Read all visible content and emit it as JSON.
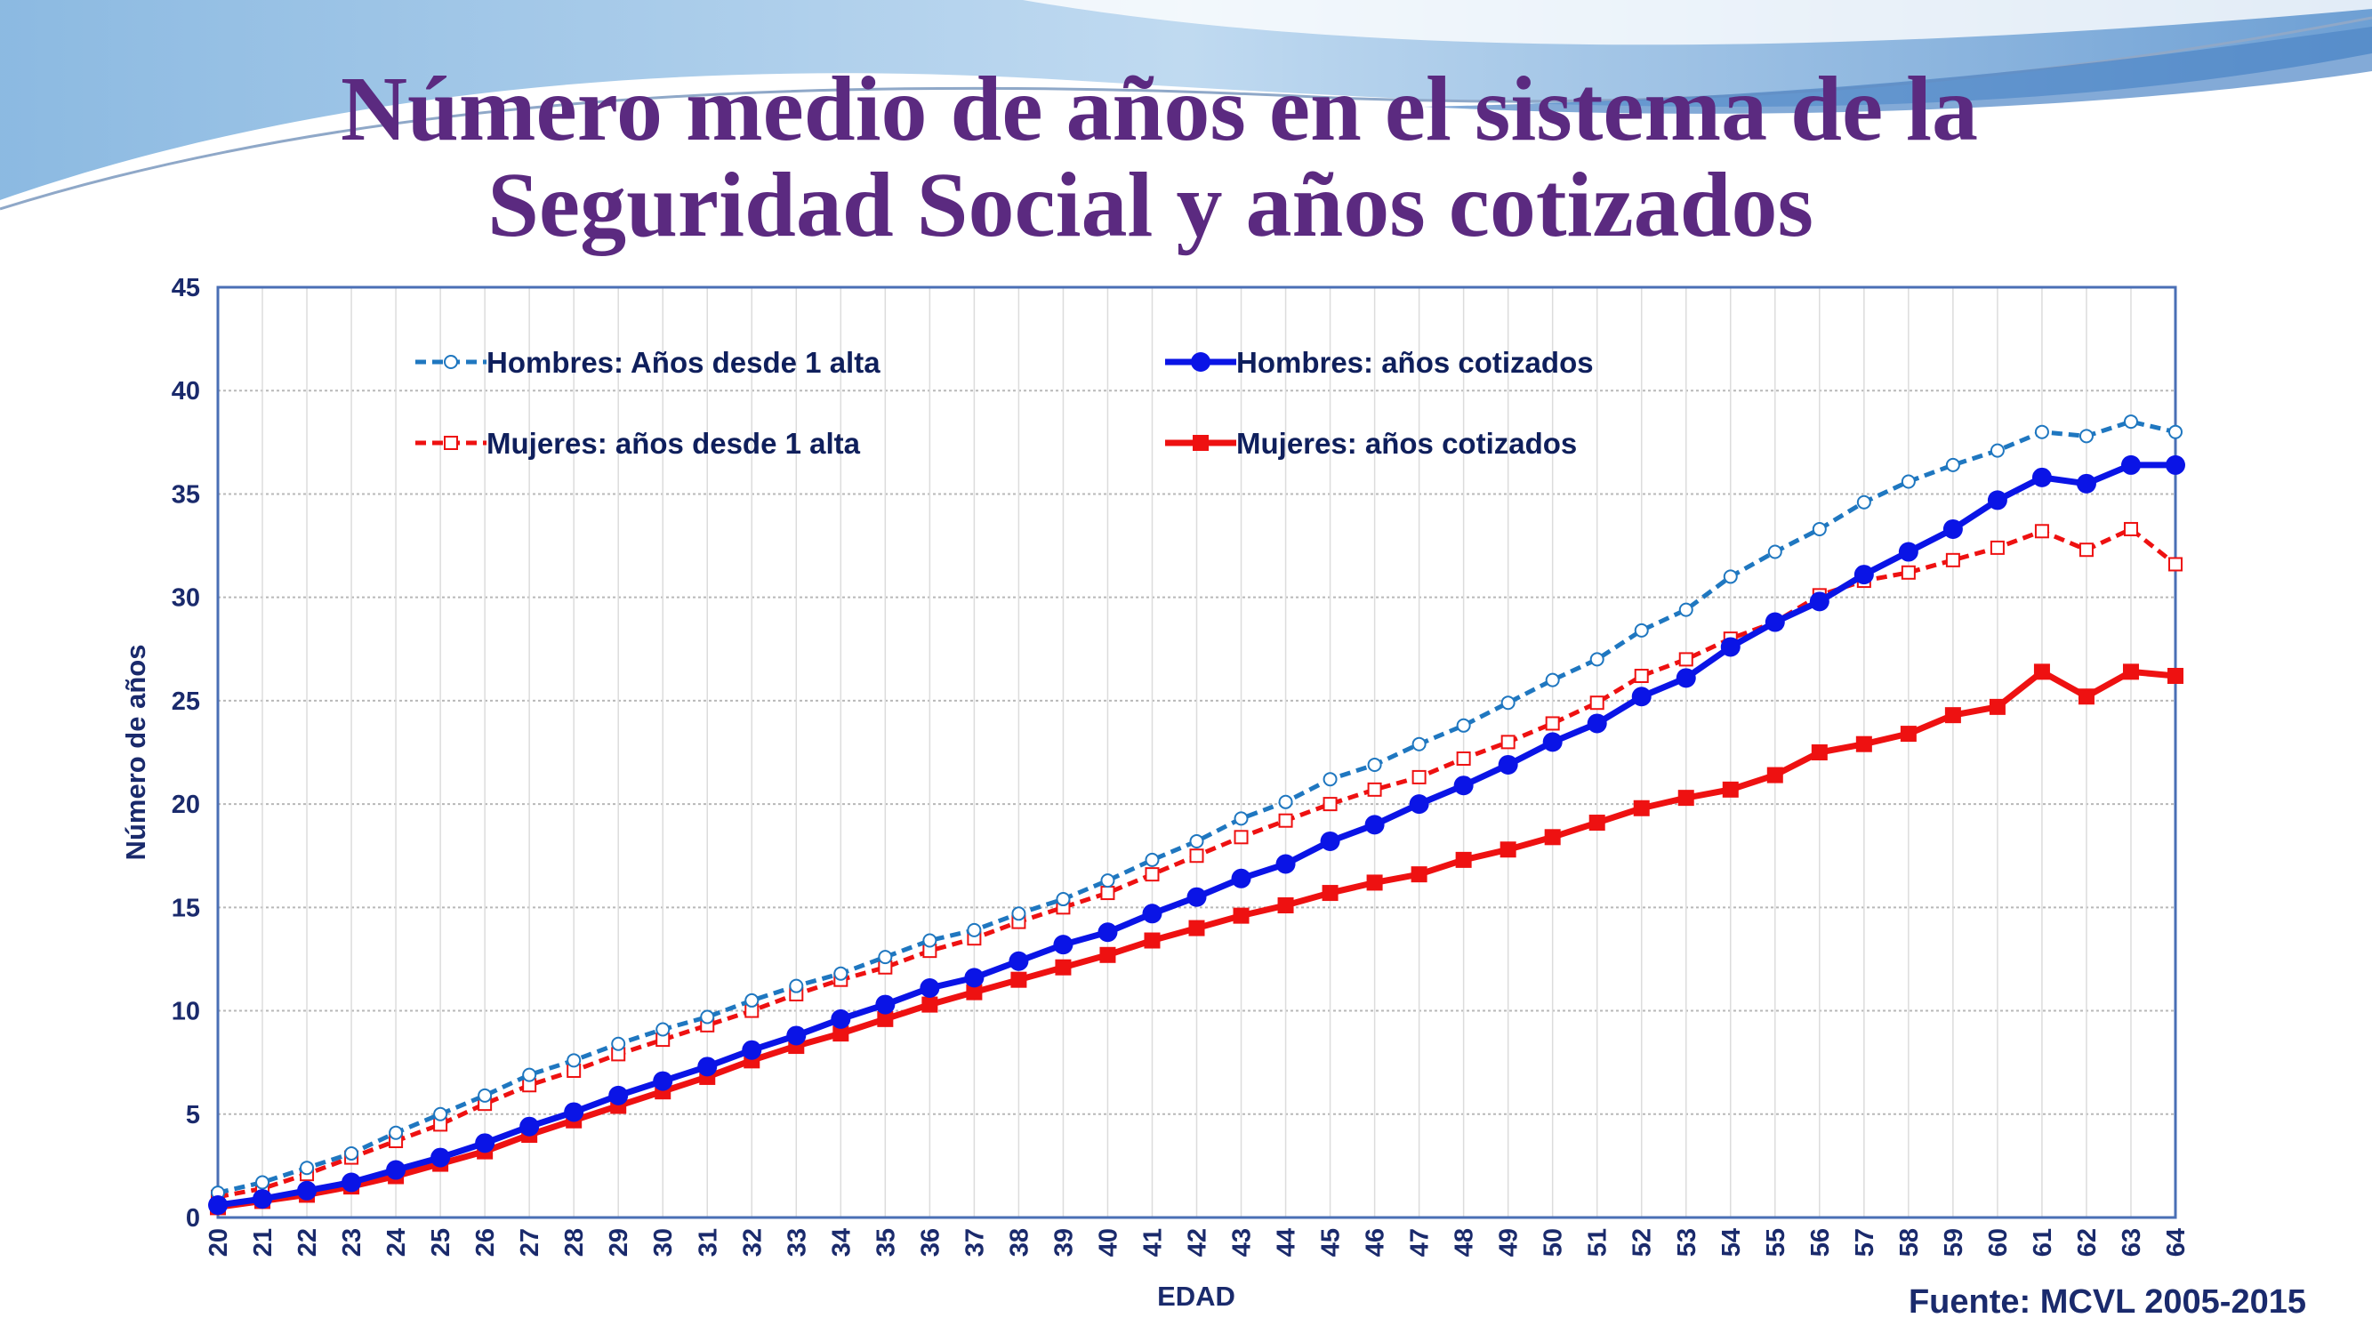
{
  "title_lines": [
    "Número medio de años en el sistema de la",
    "Seguridad  Social y años cotizados"
  ],
  "source": "Fuente: MCVL 2005-2015",
  "colors": {
    "title": "#5b2a80",
    "hombres_alta": "#1f77c0",
    "hombres_cot": "#0a14e6",
    "mujeres": "#ee1111",
    "axis_text": "#1a2a6c"
  },
  "chart_data": {
    "type": "line",
    "xlabel": "EDAD",
    "ylabel": "Número de años",
    "ylim": [
      0,
      45
    ],
    "yticks": [
      0,
      5,
      10,
      15,
      20,
      25,
      30,
      35,
      40,
      45
    ],
    "grid": true,
    "legend_position": "top",
    "x": [
      20,
      21,
      22,
      23,
      24,
      25,
      26,
      27,
      28,
      29,
      30,
      31,
      32,
      33,
      34,
      35,
      36,
      37,
      38,
      39,
      40,
      41,
      42,
      43,
      44,
      45,
      46,
      47,
      48,
      49,
      50,
      51,
      52,
      53,
      54,
      55,
      56,
      57,
      58,
      59,
      60,
      61,
      62,
      63,
      64
    ],
    "series": [
      {
        "name": "Hombres: Años desde 1 alta",
        "style": "dashed",
        "marker": "open-circle",
        "color": "#1f77c0",
        "values": [
          1.2,
          1.7,
          2.4,
          3.1,
          4.1,
          5.0,
          5.9,
          6.9,
          7.6,
          8.4,
          9.1,
          9.7,
          10.5,
          11.2,
          11.8,
          12.6,
          13.4,
          13.9,
          14.7,
          15.4,
          16.3,
          17.3,
          18.2,
          19.3,
          20.1,
          21.2,
          21.9,
          22.9,
          23.8,
          24.9,
          26.0,
          27.0,
          28.4,
          29.4,
          31.0,
          32.2,
          33.3,
          34.6,
          35.6,
          36.4,
          37.1,
          38.0,
          37.8,
          38.5,
          38.0
        ]
      },
      {
        "name": "Hombres: años cotizados",
        "style": "solid",
        "marker": "filled-circle",
        "color": "#0a14e6",
        "values": [
          0.6,
          0.9,
          1.3,
          1.7,
          2.3,
          2.9,
          3.6,
          4.4,
          5.1,
          5.9,
          6.6,
          7.3,
          8.1,
          8.8,
          9.6,
          10.3,
          11.1,
          11.6,
          12.4,
          13.2,
          13.8,
          14.7,
          15.5,
          16.4,
          17.1,
          18.2,
          19.0,
          20.0,
          20.9,
          21.9,
          23.0,
          23.9,
          25.2,
          26.1,
          27.6,
          28.8,
          29.8,
          31.1,
          32.2,
          33.3,
          34.7,
          35.8,
          35.5,
          36.4,
          36.4
        ]
      },
      {
        "name": "Mujeres: años desde 1 alta",
        "style": "dashed",
        "marker": "open-square",
        "color": "#ee1111",
        "values": [
          1.0,
          1.4,
          2.1,
          2.9,
          3.7,
          4.5,
          5.5,
          6.4,
          7.1,
          7.9,
          8.6,
          9.3,
          10.0,
          10.8,
          11.5,
          12.1,
          12.9,
          13.5,
          14.3,
          15.0,
          15.7,
          16.6,
          17.5,
          18.4,
          19.2,
          20.0,
          20.7,
          21.3,
          22.2,
          23.0,
          23.9,
          24.9,
          26.2,
          27.0,
          28.0,
          28.8,
          30.1,
          30.8,
          31.2,
          31.8,
          32.4,
          33.2,
          32.3,
          33.3,
          31.6
        ]
      },
      {
        "name": "Mujeres: años cotizados",
        "style": "solid",
        "marker": "filled-square",
        "color": "#ee1111",
        "values": [
          0.5,
          0.8,
          1.1,
          1.5,
          2.0,
          2.6,
          3.2,
          4.0,
          4.7,
          5.4,
          6.1,
          6.8,
          7.6,
          8.3,
          8.9,
          9.6,
          10.3,
          10.9,
          11.5,
          12.1,
          12.7,
          13.4,
          14.0,
          14.6,
          15.1,
          15.7,
          16.2,
          16.6,
          17.3,
          17.8,
          18.4,
          19.1,
          19.8,
          20.3,
          20.7,
          21.4,
          22.5,
          22.9,
          23.4,
          24.3,
          24.7,
          26.4,
          25.2,
          26.4,
          26.2
        ]
      }
    ]
  }
}
